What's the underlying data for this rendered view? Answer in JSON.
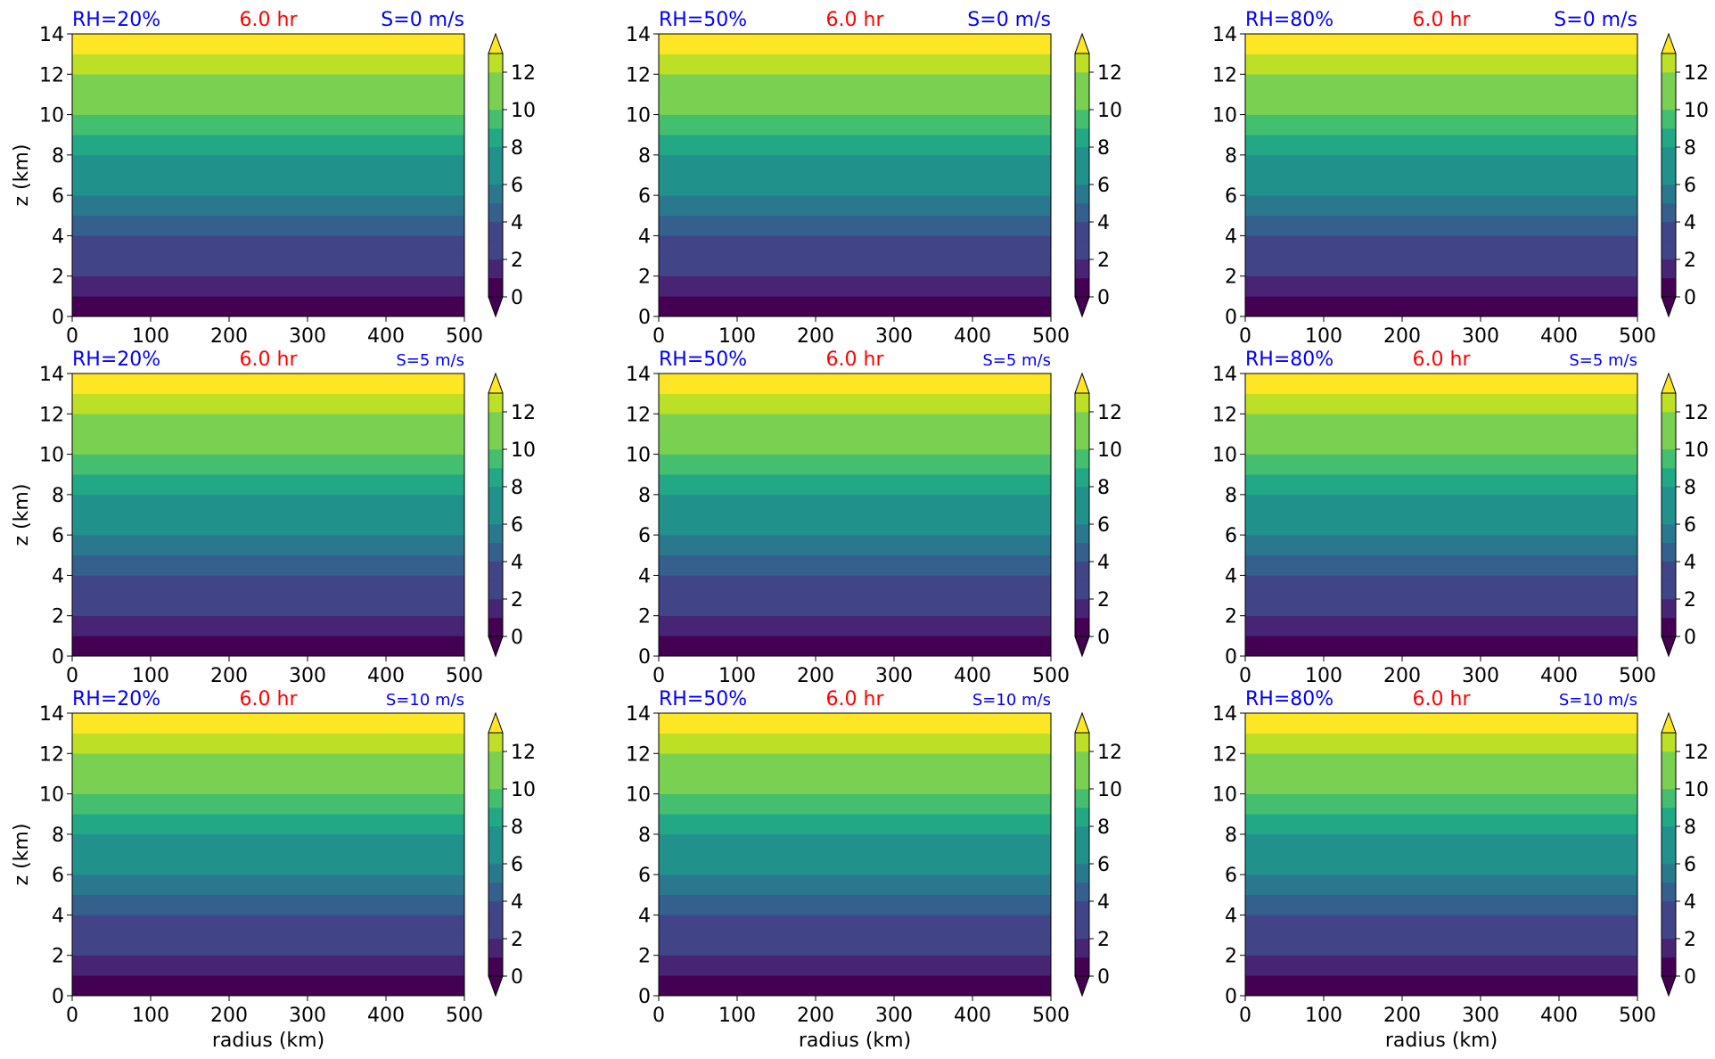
{
  "figure": {
    "ylabel": "z (km)",
    "xlabel": "radius (km)"
  },
  "colors": {
    "title_left": "#0000ff",
    "title_center": "#ff0000",
    "title_right": "#0000ff",
    "levels": [
      "#440154",
      "#472d7b",
      "#3b528b",
      "#2c728e",
      "#21918c",
      "#28ae80",
      "#5ec962",
      "#addc30",
      "#fde725"
    ],
    "bands": [
      "#440154",
      "#482475",
      "#414487",
      "#355f8d",
      "#2a788e",
      "#21918c",
      "#22a884",
      "#44bf70",
      "#7ad151",
      "#bddf26",
      "#fde725"
    ]
  },
  "chart_data": [
    {
      "type": "heatmap",
      "title_left": "RH=20%",
      "title_center": "6.0 hr",
      "title_right": "S=0 m/s",
      "xlabel": "",
      "ylabel": "z (km)",
      "xlim": [
        0,
        500
      ],
      "ylim": [
        0,
        14
      ],
      "xticks": [
        0,
        100,
        200,
        300,
        400,
        500
      ],
      "yticks": [
        0,
        2,
        4,
        6,
        8,
        10,
        12,
        14
      ],
      "levels": [
        0,
        1,
        2,
        3,
        4,
        5,
        6,
        7,
        8,
        9,
        10,
        11,
        12,
        13
      ],
      "colorbar_ticks": [
        0,
        2,
        4,
        6,
        8,
        10,
        12
      ],
      "field": "z (increases linearly with height, uniform in radius)"
    },
    {
      "type": "heatmap",
      "title_left": "RH=50%",
      "title_center": "6.0 hr",
      "title_right": "S=0 m/s",
      "xlabel": "",
      "ylabel": "",
      "xlim": [
        0,
        500
      ],
      "ylim": [
        0,
        14
      ],
      "xticks": [
        0,
        100,
        200,
        300,
        400,
        500
      ],
      "yticks": [
        0,
        2,
        4,
        6,
        8,
        10,
        12,
        14
      ],
      "levels": [
        0,
        1,
        2,
        3,
        4,
        5,
        6,
        7,
        8,
        9,
        10,
        11,
        12,
        13
      ],
      "colorbar_ticks": [
        0,
        2,
        4,
        6,
        8,
        10,
        12
      ],
      "field": "z"
    },
    {
      "type": "heatmap",
      "title_left": "RH=80%",
      "title_center": "6.0 hr",
      "title_right": "S=0 m/s",
      "xlabel": "",
      "ylabel": "",
      "xlim": [
        0,
        500
      ],
      "ylim": [
        0,
        14
      ],
      "xticks": [
        0,
        100,
        200,
        300,
        400,
        500
      ],
      "yticks": [
        0,
        2,
        4,
        6,
        8,
        10,
        12,
        14
      ],
      "levels": [
        0,
        1,
        2,
        3,
        4,
        5,
        6,
        7,
        8,
        9,
        10,
        11,
        12,
        13
      ],
      "colorbar_ticks": [
        0,
        2,
        4,
        6,
        8,
        10,
        12
      ],
      "field": "z"
    },
    {
      "type": "heatmap",
      "title_left": "RH=20%",
      "title_center": "6.0 hr",
      "title_right": "S=5 m/s",
      "xlabel": "",
      "ylabel": "z (km)",
      "xlim": [
        0,
        500
      ],
      "ylim": [
        0,
        14
      ],
      "xticks": [
        0,
        100,
        200,
        300,
        400,
        500
      ],
      "yticks": [
        0,
        2,
        4,
        6,
        8,
        10,
        12,
        14
      ],
      "levels": [
        0,
        1,
        2,
        3,
        4,
        5,
        6,
        7,
        8,
        9,
        10,
        11,
        12,
        13
      ],
      "colorbar_ticks": [
        0,
        2,
        4,
        6,
        8,
        10,
        12
      ],
      "field": "z"
    },
    {
      "type": "heatmap",
      "title_left": "RH=50%",
      "title_center": "6.0 hr",
      "title_right": "S=5 m/s",
      "xlabel": "",
      "ylabel": "",
      "xlim": [
        0,
        500
      ],
      "ylim": [
        0,
        14
      ],
      "xticks": [
        0,
        100,
        200,
        300,
        400,
        500
      ],
      "yticks": [
        0,
        2,
        4,
        6,
        8,
        10,
        12,
        14
      ],
      "levels": [
        0,
        1,
        2,
        3,
        4,
        5,
        6,
        7,
        8,
        9,
        10,
        11,
        12,
        13
      ],
      "colorbar_ticks": [
        0,
        2,
        4,
        6,
        8,
        10,
        12
      ],
      "field": "z"
    },
    {
      "type": "heatmap",
      "title_left": "RH=80%",
      "title_center": "6.0 hr",
      "title_right": "S=5 m/s",
      "xlabel": "",
      "ylabel": "",
      "xlim": [
        0,
        500
      ],
      "ylim": [
        0,
        14
      ],
      "xticks": [
        0,
        100,
        200,
        300,
        400,
        500
      ],
      "yticks": [
        0,
        2,
        4,
        6,
        8,
        10,
        12,
        14
      ],
      "levels": [
        0,
        1,
        2,
        3,
        4,
        5,
        6,
        7,
        8,
        9,
        10,
        11,
        12,
        13
      ],
      "colorbar_ticks": [
        0,
        2,
        4,
        6,
        8,
        10,
        12
      ],
      "field": "z"
    },
    {
      "type": "heatmap",
      "title_left": "RH=20%",
      "title_center": "6.0 hr",
      "title_right": "S=10 m/s",
      "xlabel": "radius (km)",
      "ylabel": "z (km)",
      "xlim": [
        0,
        500
      ],
      "ylim": [
        0,
        14
      ],
      "xticks": [
        0,
        100,
        200,
        300,
        400,
        500
      ],
      "yticks": [
        0,
        2,
        4,
        6,
        8,
        10,
        12,
        14
      ],
      "levels": [
        0,
        1,
        2,
        3,
        4,
        5,
        6,
        7,
        8,
        9,
        10,
        11,
        12,
        13
      ],
      "colorbar_ticks": [
        0,
        2,
        4,
        6,
        8,
        10,
        12
      ],
      "field": "z"
    },
    {
      "type": "heatmap",
      "title_left": "RH=50%",
      "title_center": "6.0 hr",
      "title_right": "S=10 m/s",
      "xlabel": "radius (km)",
      "ylabel": "",
      "xlim": [
        0,
        500
      ],
      "ylim": [
        0,
        14
      ],
      "xticks": [
        0,
        100,
        200,
        300,
        400,
        500
      ],
      "yticks": [
        0,
        2,
        4,
        6,
        8,
        10,
        12,
        14
      ],
      "levels": [
        0,
        1,
        2,
        3,
        4,
        5,
        6,
        7,
        8,
        9,
        10,
        11,
        12,
        13
      ],
      "colorbar_ticks": [
        0,
        2,
        4,
        6,
        8,
        10,
        12
      ],
      "field": "z"
    },
    {
      "type": "heatmap",
      "title_left": "RH=80%",
      "title_center": "6.0 hr",
      "title_right": "S=10 m/s",
      "xlabel": "radius (km)",
      "ylabel": "",
      "xlim": [
        0,
        500
      ],
      "ylim": [
        0,
        14
      ],
      "xticks": [
        0,
        100,
        200,
        300,
        400,
        500
      ],
      "yticks": [
        0,
        2,
        4,
        6,
        8,
        10,
        12,
        14
      ],
      "levels": [
        0,
        1,
        2,
        3,
        4,
        5,
        6,
        7,
        8,
        9,
        10,
        11,
        12,
        13
      ],
      "colorbar_ticks": [
        0,
        2,
        4,
        6,
        8,
        10,
        12
      ],
      "field": "z"
    }
  ]
}
